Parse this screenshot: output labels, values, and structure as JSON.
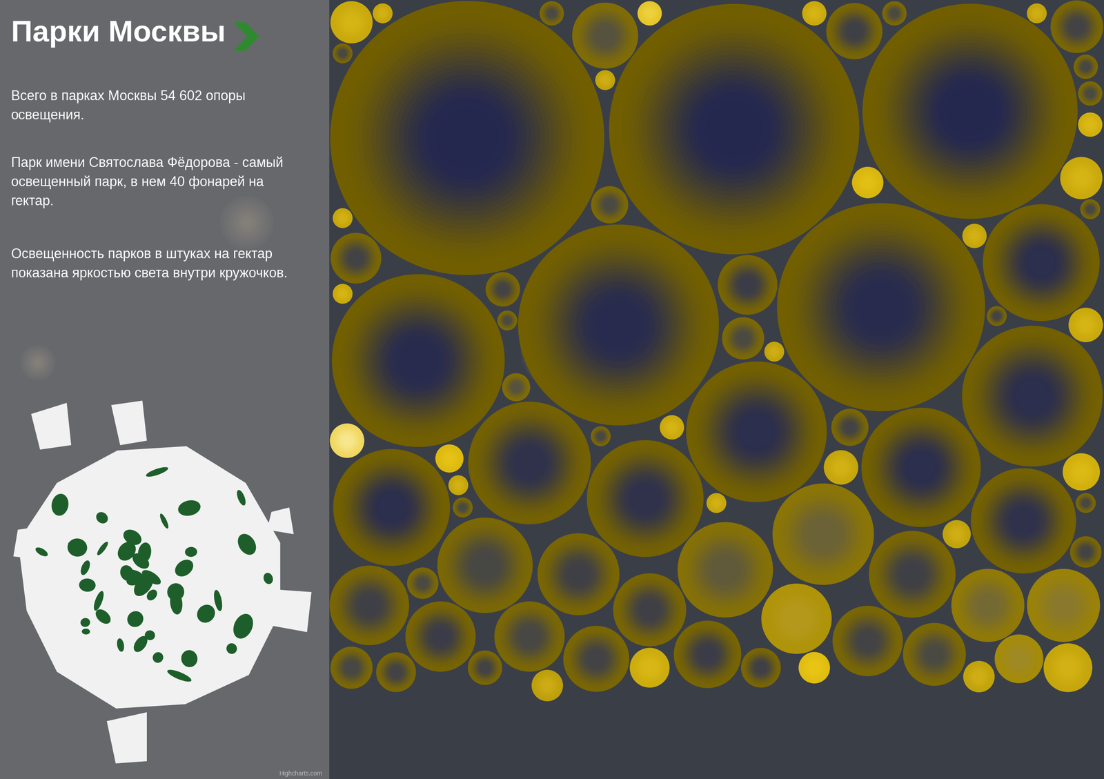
{
  "chart_data": {
    "type": "packedbubble",
    "title": "Парки Москвы",
    "paragraphs": [
      "Всего в парках Москвы 54 602 опоры\nосвещения.",
      "Парк имени Святослава Фёдорова - самый\nосвещенный парк, в нем 40 фонарей на\nгектар.",
      "Освещенность парков в штуках на гектар\nпоказана яркостью света внутри кружочков."
    ],
    "credits": "Highcharts.com",
    "sizes": [
      380,
      317,
      219,
      234,
      204,
      151,
      100,
      100,
      76,
      72,
      69,
      69,
      69,
      56,
      52,
      46,
      46,
      38,
      34,
      32,
      27,
      27,
      27,
      23,
      25,
      25,
      25,
      25,
      22,
      22,
      20,
      18,
      16,
      14,
      12,
      12,
      13,
      9,
      9,
      9,
      9,
      8,
      8,
      8,
      7,
      7,
      7,
      6,
      6,
      6,
      6,
      6,
      5,
      5,
      5,
      5,
      5,
      5,
      4,
      4,
      4,
      3,
      3,
      3,
      3,
      3,
      3,
      3,
      3,
      3,
      2,
      2,
      2,
      2,
      2,
      2,
      2,
      2,
      2,
      2,
      2,
      2,
      2,
      2,
      2
    ],
    "values": [
      2,
      2,
      3,
      2,
      3,
      3,
      4,
      4,
      5,
      4,
      4,
      5,
      4,
      5,
      15,
      11,
      14,
      9,
      9,
      9,
      16,
      18,
      9,
      8,
      22,
      8,
      11,
      10,
      13,
      10,
      12,
      8,
      9,
      10,
      20,
      27,
      10,
      28,
      28,
      12,
      11,
      29,
      9,
      10,
      12,
      10,
      30,
      10,
      28,
      40,
      27,
      10,
      32,
      10,
      12,
      34,
      26,
      25,
      13,
      33,
      26,
      12,
      36,
      28,
      12,
      11,
      12,
      30,
      27,
      28,
      27,
      26,
      11,
      26,
      11,
      27,
      28,
      10,
      12,
      26,
      11,
      27,
      27,
      11,
      12
    ]
  }
}
